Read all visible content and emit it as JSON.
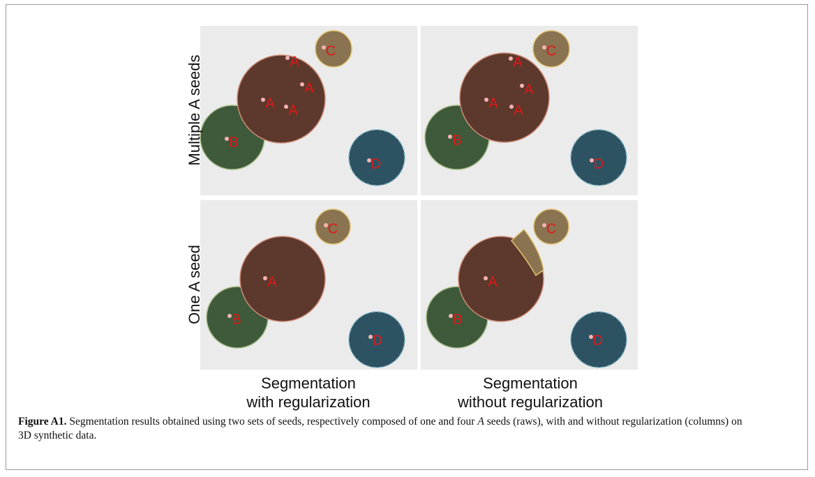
{
  "figure": {
    "row_labels": [
      "Multiple A seeds",
      "One A seed"
    ],
    "column_labels": [
      [
        "Segmentation",
        "with regularization"
      ],
      [
        "Segmentation",
        "without regularization"
      ]
    ],
    "panels": [
      {
        "seeds": [
          "A",
          "A",
          "A",
          "A",
          "B",
          "C",
          "D"
        ]
      },
      {
        "seeds": [
          "A",
          "A",
          "A",
          "A",
          "B",
          "C",
          "D"
        ]
      },
      {
        "seeds": [
          "A",
          "B",
          "C",
          "D"
        ]
      },
      {
        "seeds": [
          "A",
          "B",
          "C",
          "D"
        ]
      }
    ],
    "caption": {
      "label": "Figure A1.",
      "text_before": " Segmentation results obtained using two sets of seeds, respectively composed of one and four ",
      "italic": "A",
      "text_after": " seeds (raws), with and without regularization (columns) on 3D synthetic data."
    }
  }
}
